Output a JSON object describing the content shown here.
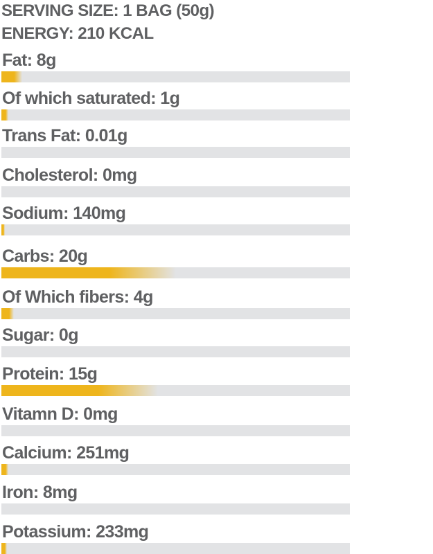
{
  "header": {
    "serving": "SERVING SIZE: 1 BAG (50g)",
    "energy": "ENERGY: 210 KCAL"
  },
  "colors": {
    "fill": "#eeb51c",
    "track": "#e2e3e5",
    "text": "#5f6062"
  },
  "nutrients": [
    {
      "label": "Fat: 8g",
      "fill": 0.06
    },
    {
      "label": "Of which saturated: 1g",
      "fill": 0.02
    },
    {
      "label": "Trans Fat: 0.01g",
      "fill": 0
    },
    {
      "label": "Cholesterol: 0mg",
      "fill": 0
    },
    {
      "label": "Sodium: 140mg",
      "fill": 0.01
    },
    {
      "label": "Carbs: 20g",
      "fill": 0.5
    },
    {
      "label": "Of Which fibers: 4g",
      "fill": 0.035
    },
    {
      "label": "Sugar: 0g",
      "fill": 0
    },
    {
      "label": "Protein: 15g",
      "fill": 0.45
    },
    {
      "label": "Vitamn D: 0mg",
      "fill": 0
    },
    {
      "label": "Calcium: 251mg",
      "fill": 0.02
    },
    {
      "label": "Iron: 8mg",
      "fill": 0
    },
    {
      "label": "Potassium: 233mg",
      "fill": 0.015
    }
  ]
}
